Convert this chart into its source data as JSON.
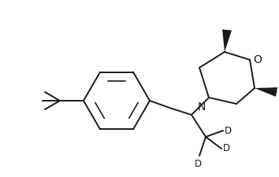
{
  "background": "#ffffff",
  "line_color": "#1a1a1a",
  "line_width": 1.4,
  "label_N": "N",
  "label_O": "O",
  "label_D": "D",
  "color_N": "#1a1a1a",
  "color_O": "#1a1a1a",
  "color_D": "#1a1a1a",
  "font_size": 8.5
}
